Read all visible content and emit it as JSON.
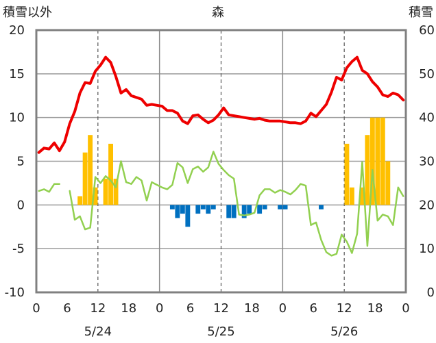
{
  "chart_data": {
    "type": "bar+line",
    "title": "森",
    "left_axis_label": "積雪以外",
    "right_axis_label": "積雪",
    "left_ylim": [
      -10,
      20
    ],
    "left_yticks": [
      -10,
      -5,
      0,
      5,
      10,
      15,
      20
    ],
    "right_ylim": [
      0,
      60
    ],
    "right_yticks": [
      0,
      10,
      20,
      30,
      40,
      50,
      60
    ],
    "x_tick_labels": [
      "0",
      "6",
      "12",
      "18",
      "0",
      "6",
      "12",
      "18",
      "0",
      "6",
      "12",
      "18",
      "0"
    ],
    "date_labels": [
      "5/24",
      "5/25",
      "5/26"
    ],
    "hours": 72,
    "grid": "horizontal",
    "series": [
      {
        "kind": "line",
        "axis": "left",
        "color": "#ee0000",
        "values": [
          6.0,
          6.5,
          6.4,
          7.1,
          6.2,
          7.2,
          9.3,
          10.7,
          12.8,
          14.0,
          13.9,
          15.3,
          16.0,
          16.9,
          16.3,
          14.7,
          12.8,
          13.2,
          12.5,
          12.3,
          12.1,
          11.4,
          11.5,
          11.4,
          11.3,
          10.8,
          10.8,
          10.5,
          9.6,
          9.3,
          10.2,
          10.3,
          9.8,
          9.4,
          9.7,
          10.3,
          11.1,
          10.3,
          10.2,
          10.1,
          10.0,
          9.9,
          9.8,
          9.9,
          9.7,
          9.6,
          9.6,
          9.6,
          9.5,
          9.4,
          9.4,
          9.3,
          9.6,
          10.5,
          10.1,
          10.8,
          11.5,
          12.9,
          14.6,
          14.3,
          15.7,
          16.4,
          16.9,
          15.4,
          15.0,
          14.1,
          13.5,
          12.6,
          12.4,
          12.8,
          12.6,
          12.0
        ]
      },
      {
        "kind": "line",
        "axis": "left",
        "color": "#92d050",
        "values": [
          1.6,
          1.8,
          1.5,
          2.4,
          2.4,
          null,
          1.6,
          -1.7,
          -1.3,
          -2.8,
          -2.6,
          3.2,
          2.5,
          3.3,
          2.8,
          2.0,
          5.0,
          2.6,
          2.4,
          3.2,
          2.8,
          0.5,
          2.6,
          2.3,
          2.0,
          1.8,
          2.3,
          4.8,
          4.3,
          2.5,
          4.1,
          4.4,
          3.8,
          4.3,
          6.1,
          4.7,
          4.0,
          3.4,
          3.0,
          -1.1,
          -1.2,
          -1.1,
          -0.9,
          1.1,
          1.8,
          1.8,
          1.4,
          1.7,
          1.5,
          1.2,
          1.7,
          2.4,
          2.2,
          -2.3,
          -2.0,
          -4.0,
          -5.4,
          -5.8,
          -5.6,
          -3.4,
          -4.2,
          -5.5,
          -3.3,
          4.9,
          -4.7,
          4.0,
          -1.8,
          -1.1,
          -1.3,
          -2.3,
          2.0,
          1.0
        ]
      },
      {
        "kind": "bar",
        "axis": "left",
        "color_pos": "#ffc000",
        "color_neg": "#0070c0",
        "values": [
          0,
          0,
          0,
          0,
          0,
          0,
          0,
          0,
          1,
          6,
          8,
          2,
          0,
          3,
          7,
          3,
          0,
          0,
          0,
          0,
          0,
          0,
          0,
          0,
          0,
          0,
          -0.5,
          -1.5,
          -1,
          -2.5,
          0,
          -1,
          -0.5,
          -1,
          -0.5,
          0,
          0,
          -1.5,
          -1.5,
          0,
          -1.5,
          -1,
          0,
          -1,
          -0.5,
          0,
          0,
          -0.5,
          -0.5,
          0,
          0,
          0,
          0,
          0,
          0,
          -0.5,
          0,
          0,
          0,
          0,
          7,
          2,
          0,
          2,
          8,
          10,
          10,
          10,
          5,
          0,
          0,
          0
        ]
      }
    ]
  }
}
